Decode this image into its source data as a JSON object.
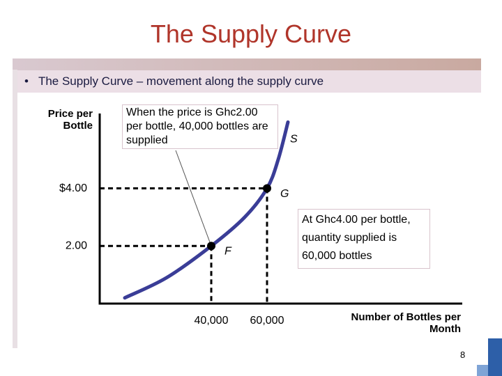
{
  "slide": {
    "title": "The Supply Curve",
    "bullet": "The Supply Curve – movement along the supply curve",
    "page_number": "8"
  },
  "chart_data": {
    "type": "line",
    "y_label": "Price per Bottle",
    "x_label": "Number of Bottles per Month",
    "xlim": [
      0,
      130000
    ],
    "ylim": [
      0,
      6.6
    ],
    "xticks": [
      {
        "value": 40000,
        "label": "40,000"
      },
      {
        "value": 60000,
        "label": "60,000"
      }
    ],
    "yticks": [
      {
        "value": 2,
        "label": "2.00"
      },
      {
        "value": 4,
        "label": "$4.00"
      }
    ],
    "series": [
      {
        "name": "S",
        "color": "#3a3d97",
        "x": [
          9000,
          24000,
          40000,
          52000,
          60000,
          64000,
          67500
        ],
        "values": [
          0.2,
          0.9,
          2,
          3,
          4,
          5,
          6.3
        ]
      }
    ],
    "points": [
      {
        "label": "F",
        "x": 40000,
        "y": 2
      },
      {
        "label": "G",
        "x": 60000,
        "y": 4
      }
    ],
    "annotations": [
      "When the price is Ghc2.00 per bottle, 40,000 bottles are supplied",
      "At Ghc4.00 per bottle, quantity supplied is 60,000 bottles"
    ]
  }
}
